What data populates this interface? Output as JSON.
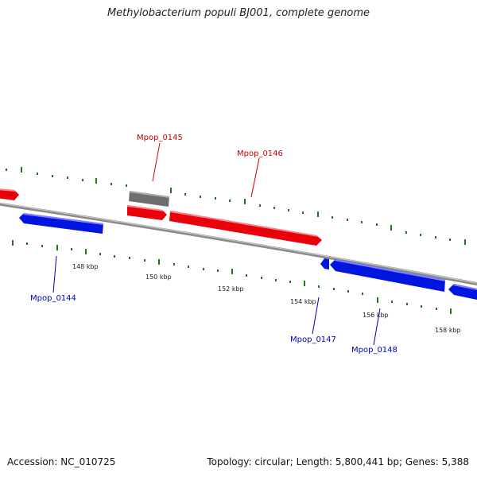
{
  "title": "Methylobacterium populi BJ001, complete genome",
  "footer": {
    "accession": "Accession: NC_010725",
    "stats": "Topology: circular; Length: 5,800,441 bp; Genes: 5,388"
  },
  "colors": {
    "forward_strand": "#e8000b",
    "reverse_strand": "#0015e0",
    "other_feature": "#6e6e6e",
    "backbone": "#8a8a8a",
    "tick": "#1a7a1a",
    "forward_label": "#cc0000",
    "reverse_label": "#0000bb"
  },
  "genes": [
    {
      "name": "Mpop_0145",
      "strand": "forward",
      "labeled": true
    },
    {
      "name": "Mpop_0146",
      "strand": "forward",
      "labeled": true
    },
    {
      "name": "Mpop_0144",
      "strand": "reverse",
      "labeled": true
    },
    {
      "name": "Mpop_0147",
      "strand": "reverse",
      "labeled": true
    },
    {
      "name": "Mpop_0148",
      "strand": "reverse",
      "labeled": true
    }
  ],
  "ticks": [
    "148 kbp",
    "150 kbp",
    "152 kbp",
    "154 kbp",
    "156 kbp",
    "158 kbp"
  ]
}
